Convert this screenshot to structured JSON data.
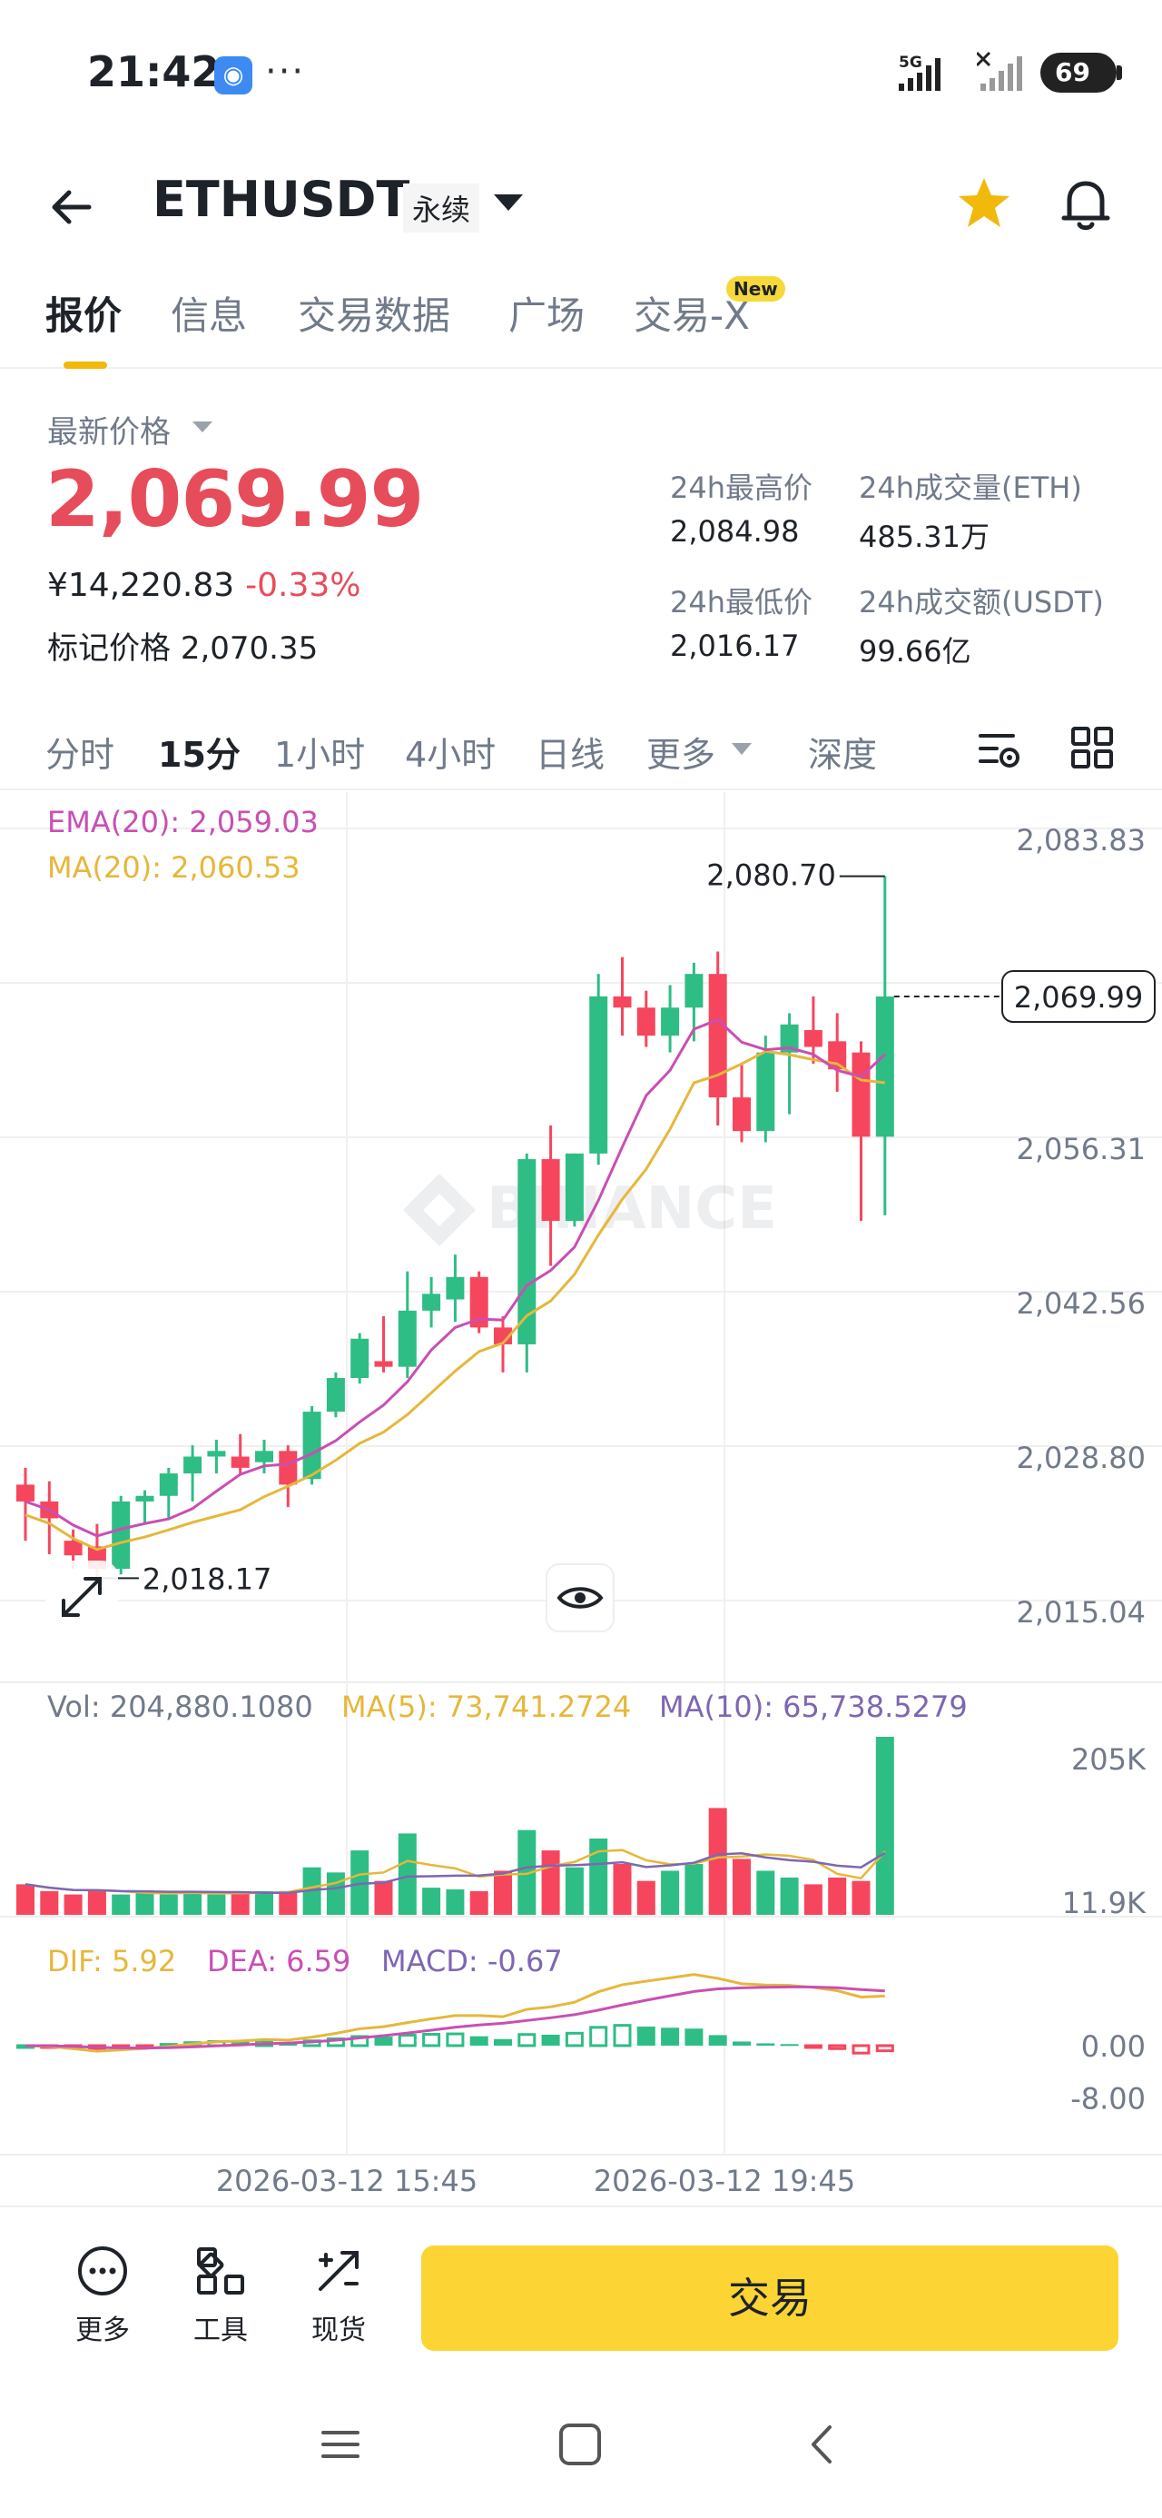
{
  "status": {
    "time": "21:42",
    "app_icon": "shield-app-icon",
    "more": "···",
    "network": "5G",
    "battery": "69"
  },
  "header": {
    "symbol": "ETHUSDT",
    "contract_type": "永续"
  },
  "tabs": [
    {
      "label": "报价",
      "active": true
    },
    {
      "label": "信息",
      "active": false
    },
    {
      "label": "交易数据",
      "active": false
    },
    {
      "label": "广场",
      "active": false
    },
    {
      "label": "交易-X",
      "active": false,
      "badge": "New"
    }
  ],
  "price": {
    "last_label": "最新价格",
    "last": "2,069.99",
    "cny": "¥14,220.83",
    "change": "-0.33%",
    "mark_label": "标记价格",
    "mark": "2,070.35",
    "high_label": "24h最高价",
    "high": "2,084.98",
    "low_label": "24h最低价",
    "low": "2,016.17",
    "vol_eth_label": "24h成交量(ETH)",
    "vol_eth": "485.31万",
    "vol_usdt_label": "24h成交额(USDT)",
    "vol_usdt": "99.66亿"
  },
  "intervals": {
    "items": [
      "分时",
      "15分",
      "1小时",
      "4小时",
      "日线",
      "更多",
      "深度"
    ],
    "active": "15分"
  },
  "indicators": {
    "ema20": "EMA(20): 2,059.03",
    "ma20": "MA(20): 2,060.53",
    "vol": "Vol: 204,880.1080",
    "vol_ma5": "MA(5): 73,741.2724",
    "vol_ma10": "MA(10): 65,738.5279",
    "dif": "DIF: 5.92",
    "dea": "DEA: 6.59",
    "macd": "MACD: -0.67"
  },
  "chart_data": {
    "type": "candlestick",
    "interval": "15m",
    "price_axis_ticks": [
      "2,083.83",
      "2,070.07",
      "2,056.31",
      "2,042.56",
      "2,028.80",
      "2,015.04"
    ],
    "price_axis_range": [
      2015.04,
      2083.83
    ],
    "last_price_label": "2,069.99",
    "high_marker": "2,080.70",
    "low_marker": "2,018.17",
    "volume_axis_ticks": [
      "205K",
      "11.9K"
    ],
    "macd_axis_ticks": [
      "0.00",
      "-8.00"
    ],
    "time_labels": [
      "2026-03-12 15:45",
      "2026-03-12 19:45"
    ],
    "candles": [
      {
        "o": 2026.5,
        "h": 2028.0,
        "l": 2021.5,
        "c": 2025.0
      },
      {
        "o": 2025.0,
        "h": 2026.8,
        "l": 2020.3,
        "c": 2023.5
      },
      {
        "o": 2021.5,
        "h": 2022.5,
        "l": 2019.0,
        "c": 2020.2
      },
      {
        "o": 2021.0,
        "h": 2023.0,
        "l": 2018.17,
        "c": 2019.0
      },
      {
        "o": 2019.0,
        "h": 2025.5,
        "l": 2018.5,
        "c": 2025.0
      },
      {
        "o": 2025.0,
        "h": 2026.0,
        "l": 2023.0,
        "c": 2025.5
      },
      {
        "o": 2025.5,
        "h": 2028.0,
        "l": 2023.5,
        "c": 2027.5
      },
      {
        "o": 2027.5,
        "h": 2030.0,
        "l": 2025.0,
        "c": 2029.0
      },
      {
        "o": 2029.0,
        "h": 2030.5,
        "l": 2027.5,
        "c": 2029.5
      },
      {
        "o": 2029.0,
        "h": 2031.0,
        "l": 2027.5,
        "c": 2028.0
      },
      {
        "o": 2028.5,
        "h": 2030.5,
        "l": 2027.5,
        "c": 2029.5
      },
      {
        "o": 2029.5,
        "h": 2030.0,
        "l": 2024.5,
        "c": 2026.5
      },
      {
        "o": 2027.0,
        "h": 2033.5,
        "l": 2026.5,
        "c": 2033.0
      },
      {
        "o": 2033.0,
        "h": 2036.5,
        "l": 2032.5,
        "c": 2036.0
      },
      {
        "o": 2036.0,
        "h": 2040.0,
        "l": 2035.5,
        "c": 2039.5
      },
      {
        "o": 2037.5,
        "h": 2041.5,
        "l": 2036.5,
        "c": 2037.0
      },
      {
        "o": 2037.0,
        "h": 2045.5,
        "l": 2036.0,
        "c": 2042.0
      },
      {
        "o": 2042.0,
        "h": 2045.0,
        "l": 2040.5,
        "c": 2043.5
      },
      {
        "o": 2043.0,
        "h": 2047.0,
        "l": 2041.0,
        "c": 2045.0
      },
      {
        "o": 2045.0,
        "h": 2045.5,
        "l": 2040.0,
        "c": 2040.5
      },
      {
        "o": 2040.5,
        "h": 2041.5,
        "l": 2036.5,
        "c": 2039.0
      },
      {
        "o": 2039.0,
        "h": 2056.0,
        "l": 2036.5,
        "c": 2055.5
      },
      {
        "o": 2055.5,
        "h": 2058.5,
        "l": 2046.0,
        "c": 2050.0
      },
      {
        "o": 2050.0,
        "h": 2056.0,
        "l": 2049.5,
        "c": 2056.0
      },
      {
        "o": 2056.0,
        "h": 2072.0,
        "l": 2055.0,
        "c": 2070.0
      },
      {
        "o": 2070.0,
        "h": 2073.5,
        "l": 2066.5,
        "c": 2069.0
      },
      {
        "o": 2069.0,
        "h": 2070.5,
        "l": 2065.5,
        "c": 2066.5
      },
      {
        "o": 2066.5,
        "h": 2071.0,
        "l": 2065.0,
        "c": 2069.0
      },
      {
        "o": 2069.0,
        "h": 2073.0,
        "l": 2066.0,
        "c": 2072.0
      },
      {
        "o": 2072.0,
        "h": 2074.0,
        "l": 2058.5,
        "c": 2061.0
      },
      {
        "o": 2061.0,
        "h": 2064.0,
        "l": 2057.0,
        "c": 2058.0
      },
      {
        "o": 2058.0,
        "h": 2066.5,
        "l": 2057.0,
        "c": 2065.0
      },
      {
        "o": 2065.0,
        "h": 2068.5,
        "l": 2059.5,
        "c": 2067.5
      },
      {
        "o": 2067.0,
        "h": 2070.0,
        "l": 2064.0,
        "c": 2065.5
      },
      {
        "o": 2066.0,
        "h": 2068.5,
        "l": 2061.5,
        "c": 2063.5
      },
      {
        "o": 2065.0,
        "h": 2066.0,
        "l": 2050.0,
        "c": 2057.5
      },
      {
        "o": 2057.5,
        "h": 2080.7,
        "l": 2050.5,
        "c": 2069.99
      }
    ],
    "volumes": [
      18,
      14,
      12,
      14,
      12,
      13,
      12,
      14,
      12,
      13,
      14,
      14,
      28,
      25,
      38,
      20,
      48,
      16,
      15,
      14,
      26,
      50,
      38,
      28,
      45,
      30,
      20,
      26,
      30,
      63,
      33,
      26,
      22,
      18,
      22,
      20,
      105
    ]
  }
}
